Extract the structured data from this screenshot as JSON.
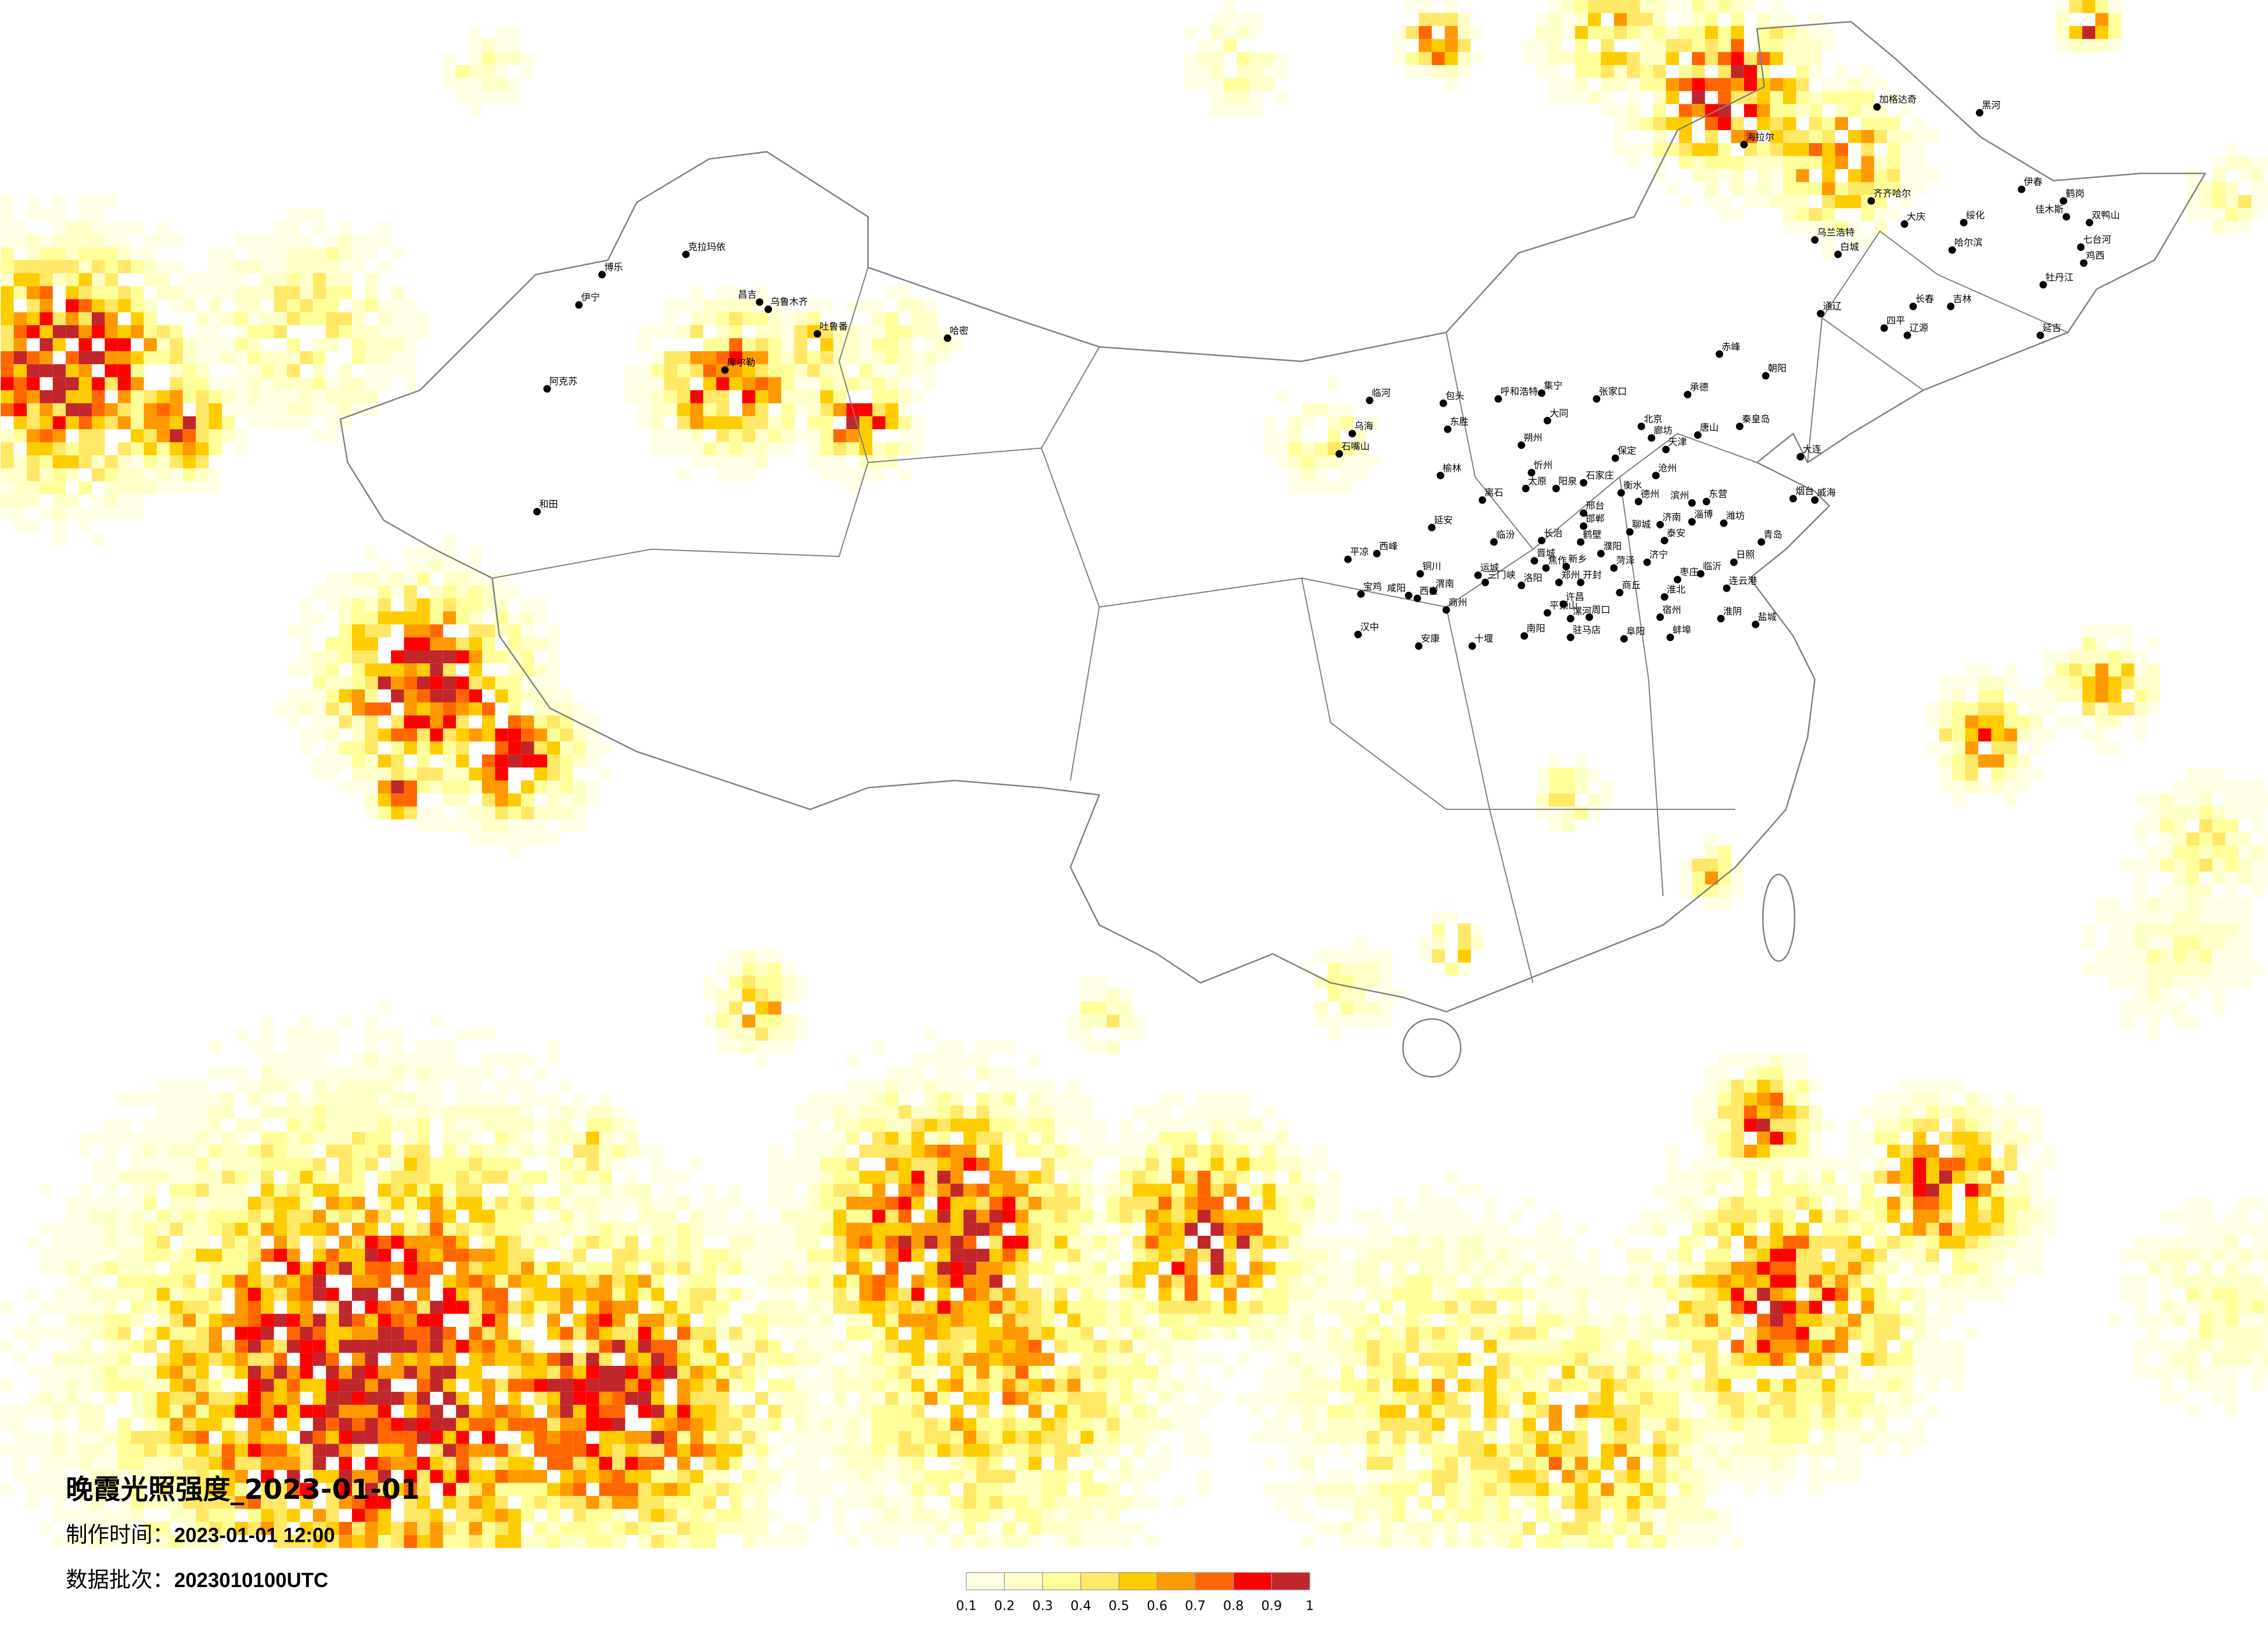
{
  "title": "晚霞光照强度_2023-01-01",
  "meta": {
    "made_label": "制作时间：",
    "made_value": "2023-01-01 12:00",
    "batch_label": "数据批次：",
    "batch_value": "2023010100UTC"
  },
  "legend": {
    "bins": [
      {
        "label": "0.1",
        "color": "#FFFFE6"
      },
      {
        "label": "0.2",
        "color": "#FFFFC8"
      },
      {
        "label": "0.3",
        "color": "#FFFF99"
      },
      {
        "label": "0.4",
        "color": "#FFE866"
      },
      {
        "label": "0.5",
        "color": "#FFCC00"
      },
      {
        "label": "0.6",
        "color": "#FF9900"
      },
      {
        "label": "0.7",
        "color": "#FF6600"
      },
      {
        "label": "0.8",
        "color": "#FF0000"
      },
      {
        "label": "0.9",
        "color": "#C0262B"
      }
    ],
    "end_label": "1"
  },
  "colors": {
    "boundary": "#808080",
    "city_dot": "#000000"
  },
  "cities": [
    "克拉玛依",
    "博乐",
    "伊宁",
    "昌吉",
    "乌鲁木齐",
    "吐鲁番",
    "哈密",
    "库尔勒",
    "阿克苏",
    "和田",
    "加格达奇",
    "黑河",
    "海拉尔",
    "齐齐哈尔",
    "伊春",
    "鹤岗",
    "佳木斯",
    "双鸭山",
    "大庆",
    "绥化",
    "乌兰浩特",
    "白城",
    "哈尔滨",
    "七台河",
    "鸡西",
    "牡丹江",
    "长春",
    "吉林",
    "通辽",
    "四平",
    "辽源",
    "延吉",
    "赤峰",
    "临河",
    "包头",
    "呼和浩特",
    "集宁",
    "张家口",
    "承德",
    "朝阳",
    "乌海",
    "东胜",
    "大同",
    "北京",
    "唐山",
    "秦皇岛",
    "廊坊",
    "天津",
    "朔州",
    "石嘴山",
    "保定",
    "大连",
    "榆林",
    "忻州",
    "沧州",
    "石家庄",
    "太原",
    "阳泉",
    "衡水",
    "离石",
    "德州",
    "烟台",
    "威海",
    "滨州",
    "东营",
    "邢台",
    "淄博",
    "潍坊",
    "延安",
    "济南",
    "邯郸",
    "聊城",
    "泰安",
    "青岛",
    "临汾",
    "长治",
    "鹤壁",
    "濮阳",
    "西峰",
    "平凉",
    "晋城",
    "菏泽",
    "济宁",
    "日照",
    "铜川",
    "新乡",
    "焦作",
    "运城",
    "临沂",
    "枣庄",
    "三门峡",
    "洛阳",
    "郑州",
    "开封",
    "渭南",
    "咸阳",
    "西安",
    "宝鸡",
    "商丘",
    "连云港",
    "淮北",
    "许昌",
    "商州",
    "宿州",
    "平顶山",
    "漯河",
    "周口",
    "淮阴",
    "盐城",
    "汉中",
    "南阳",
    "驻马店",
    "阜阳",
    "蚌埠",
    "安康",
    "十堰"
  ]
}
